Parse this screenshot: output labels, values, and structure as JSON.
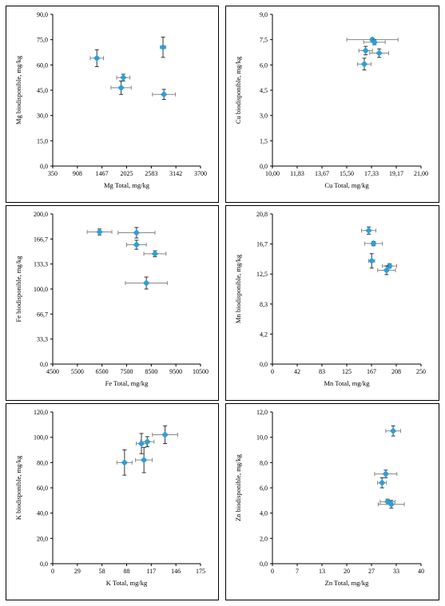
{
  "colors": {
    "marker": "#2e9fd6",
    "errorbar": "#888888",
    "axis": "#000000"
  },
  "chart_data": [
    {
      "type": "scatter",
      "xlabel": "Mg Total, mg/kg",
      "ylabel": "Mg biodisponible, mg/kg",
      "xlim": [
        350,
        3700
      ],
      "ylim": [
        0,
        90
      ],
      "xticks": [
        "350",
        "908",
        "1467",
        "2025",
        "2583",
        "3142",
        "3700"
      ],
      "yticks": [
        "0,0",
        "15,0",
        "30,0",
        "45,0",
        "60,0",
        "75,0",
        "90,0"
      ],
      "points": [
        {
          "x": 1350,
          "y": 64,
          "xerr": 150,
          "yerr": 5
        },
        {
          "x": 1950,
          "y": 52.5,
          "xerr": 150,
          "yerr": 2
        },
        {
          "x": 1900,
          "y": 46.5,
          "xerr": 230,
          "yerr": 4
        },
        {
          "x": 2850,
          "y": 70.5,
          "xerr": 60,
          "yerr": 6
        },
        {
          "x": 2870,
          "y": 42.5,
          "xerr": 260,
          "yerr": 3
        }
      ]
    },
    {
      "type": "scatter",
      "xlabel": "Cu Total, mg/kg",
      "ylabel": "Cu biodisponible, mg/kg",
      "xlim": [
        10.0,
        21.0
      ],
      "ylim": [
        0,
        9
      ],
      "xticks": [
        "10,00",
        "11,83",
        "13,67",
        "15,50",
        "17,33",
        "19,17",
        "21,00"
      ],
      "yticks": [
        "0,0",
        "1,5",
        "3,0",
        "4,5",
        "6,0",
        "7,5",
        "9,0"
      ],
      "points": [
        {
          "x": 17.4,
          "y": 7.5,
          "xerr": 1.9,
          "yerr": 0.1
        },
        {
          "x": 17.55,
          "y": 7.35,
          "xerr": 0.8,
          "yerr": 0.15
        },
        {
          "x": 16.9,
          "y": 6.85,
          "xerr": 0.5,
          "yerr": 0.25
        },
        {
          "x": 17.9,
          "y": 6.7,
          "xerr": 0.7,
          "yerr": 0.25
        },
        {
          "x": 16.8,
          "y": 6.05,
          "xerr": 0.5,
          "yerr": 0.35
        }
      ]
    },
    {
      "type": "scatter",
      "xlabel": "Fe Total, mg/kg",
      "ylabel": "Fe biodisponible, mg/kg",
      "xlim": [
        4500,
        10500
      ],
      "ylim": [
        0,
        200
      ],
      "xticks": [
        "4500",
        "5500",
        "6500",
        "7500",
        "8500",
        "9500",
        "10500"
      ],
      "yticks": [
        "0,0",
        "33,3",
        "66,7",
        "100,0",
        "133,3",
        "166,7",
        "200,0"
      ],
      "points": [
        {
          "x": 6400,
          "y": 176,
          "xerr": 500,
          "yerr": 4
        },
        {
          "x": 7900,
          "y": 175,
          "xerr": 750,
          "yerr": 7
        },
        {
          "x": 7900,
          "y": 159,
          "xerr": 400,
          "yerr": 6
        },
        {
          "x": 8650,
          "y": 147,
          "xerr": 450,
          "yerr": 4
        },
        {
          "x": 8300,
          "y": 108,
          "xerr": 850,
          "yerr": 8
        }
      ]
    },
    {
      "type": "scatter",
      "xlabel": "Mn Total, mg/kg",
      "ylabel": "Mn biodisponible, mg/kg",
      "xlim": [
        0,
        250
      ],
      "ylim": [
        0,
        20.8
      ],
      "xticks": [
        "0",
        "42",
        "83",
        "125",
        "167",
        "208",
        "250"
      ],
      "yticks": [
        "0,0",
        "4,2",
        "8,3",
        "12,5",
        "16,7",
        "20,8"
      ],
      "points": [
        {
          "x": 162,
          "y": 18.5,
          "xerr": 12,
          "yerr": 0.5
        },
        {
          "x": 170,
          "y": 16.7,
          "xerr": 15,
          "yerr": 0.3
        },
        {
          "x": 167,
          "y": 14.3,
          "xerr": 5,
          "yerr": 1.0
        },
        {
          "x": 197,
          "y": 13.6,
          "xerr": 12,
          "yerr": 0.3
        },
        {
          "x": 192,
          "y": 13.0,
          "xerr": 15,
          "yerr": 0.6
        }
      ]
    },
    {
      "type": "scatter",
      "xlabel": "K Total, mg/kg",
      "ylabel": "K biodisponible, mg/kg",
      "xlim": [
        0,
        175
      ],
      "ylim": [
        0,
        120
      ],
      "xticks": [
        "0",
        "29",
        "58",
        "88",
        "117",
        "146",
        "175"
      ],
      "yticks": [
        "0,0",
        "20,0",
        "40,0",
        "60,0",
        "80,0",
        "100,0",
        "120,0"
      ],
      "points": [
        {
          "x": 133,
          "y": 102,
          "xerr": 15,
          "yerr": 7
        },
        {
          "x": 112,
          "y": 96.5,
          "xerr": 8,
          "yerr": 4
        },
        {
          "x": 105,
          "y": 95,
          "xerr": 6,
          "yerr": 8
        },
        {
          "x": 108,
          "y": 82,
          "xerr": 10,
          "yerr": 10
        },
        {
          "x": 85,
          "y": 80,
          "xerr": 9,
          "yerr": 10
        }
      ]
    },
    {
      "type": "scatter",
      "xlabel": "Zn Total, mg/kg",
      "ylabel": "Zn biodisponible, mg/kg",
      "xlim": [
        0,
        40
      ],
      "ylim": [
        0,
        12
      ],
      "xticks": [
        "0",
        "7",
        "13",
        "20",
        "27",
        "33",
        "40"
      ],
      "yticks": [
        "0,0",
        "2,0",
        "4,0",
        "6,0",
        "8,0",
        "10,0",
        "12,0"
      ],
      "points": [
        {
          "x": 32.5,
          "y": 10.5,
          "xerr": 2.0,
          "yerr": 0.4
        },
        {
          "x": 30.5,
          "y": 7.1,
          "xerr": 3.0,
          "yerr": 0.3
        },
        {
          "x": 29.5,
          "y": 6.4,
          "xerr": 1.2,
          "yerr": 0.4
        },
        {
          "x": 31.0,
          "y": 4.9,
          "xerr": 2.0,
          "yerr": 0.2
        },
        {
          "x": 32.0,
          "y": 4.7,
          "xerr": 3.5,
          "yerr": 0.3
        }
      ]
    }
  ]
}
